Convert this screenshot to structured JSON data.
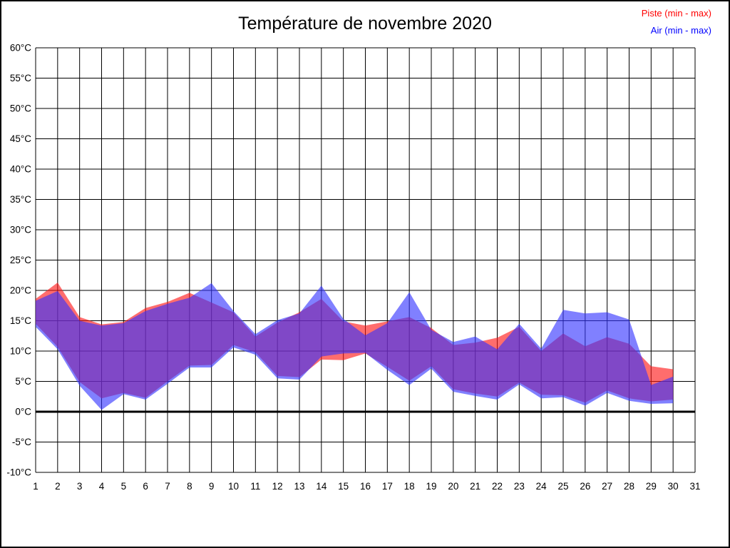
{
  "page_title": "Température de novembre 2020",
  "legend": {
    "piste_label": "Piste (min - max)",
    "air_label": "Air (min - max)",
    "piste_color": "#ff0000",
    "air_color": "#0000ff"
  },
  "chart_data": {
    "type": "area",
    "title": "Température de novembre 2020",
    "xlabel": "",
    "ylabel": "",
    "ylim": [
      -10,
      60
    ],
    "grid": true,
    "legend_position": "top-right",
    "y_tick_step": 5,
    "y_tick_labels": [
      "60°C",
      "55°C",
      "50°C",
      "45°C",
      "40°C",
      "35°C",
      "30°C",
      "25°C",
      "20°C",
      "15°C",
      "10°C",
      "5°C",
      "0°C",
      "-5°C",
      "-10°C"
    ],
    "y_tick_values": [
      60,
      55,
      50,
      45,
      40,
      35,
      30,
      25,
      20,
      15,
      10,
      5,
      0,
      -5,
      -10
    ],
    "x_tick_labels": [
      "1",
      "2",
      "3",
      "4",
      "5",
      "6",
      "7",
      "8",
      "9",
      "10",
      "11",
      "12",
      "13",
      "14",
      "15",
      "16",
      "17",
      "18",
      "19",
      "20",
      "21",
      "22",
      "23",
      "24",
      "25",
      "26",
      "27",
      "28",
      "29",
      "30",
      "31"
    ],
    "x_tick_values": [
      1,
      2,
      3,
      4,
      5,
      6,
      7,
      8,
      9,
      10,
      11,
      12,
      13,
      14,
      15,
      16,
      17,
      18,
      19,
      20,
      21,
      22,
      23,
      24,
      25,
      26,
      27,
      28,
      29,
      30,
      31
    ],
    "zero_line_value": 0,
    "days": [
      1,
      2,
      3,
      4,
      5,
      6,
      7,
      8,
      9,
      10,
      11,
      12,
      13,
      14,
      15,
      16,
      17,
      18,
      19,
      20,
      21,
      22,
      23,
      24,
      25,
      26,
      27,
      28,
      29,
      30
    ],
    "series": [
      {
        "name": "Piste (min - max)",
        "fill": "rgba(255,20,20,0.62)",
        "min": [
          14.5,
          10.7,
          4.9,
          2.2,
          3.1,
          2.3,
          5.0,
          7.6,
          7.7,
          11.0,
          9.8,
          5.9,
          5.7,
          8.6,
          8.5,
          9.6,
          7.4,
          5.1,
          7.5,
          3.7,
          3.0,
          2.5,
          4.8,
          2.8,
          2.7,
          1.5,
          3.5,
          2.2,
          1.7,
          2.0
        ],
        "max": [
          18.6,
          21.3,
          15.6,
          14.4,
          14.8,
          17.1,
          18.1,
          19.6,
          18.0,
          16.4,
          12.4,
          14.7,
          16.4,
          18.6,
          14.9,
          14.2,
          14.9,
          15.6,
          13.8,
          11.0,
          11.4,
          12.2,
          14.0,
          10.0,
          12.9,
          10.8,
          12.3,
          11.2,
          7.5,
          7.0
        ]
      },
      {
        "name": "Air (min - max)",
        "fill": "rgba(50,50,255,0.62)",
        "min": [
          14.0,
          10.3,
          4.3,
          0.3,
          2.9,
          2.0,
          4.6,
          7.3,
          7.3,
          10.6,
          9.4,
          5.5,
          5.3,
          9.1,
          9.6,
          9.7,
          6.9,
          4.4,
          7.1,
          3.3,
          2.6,
          2.0,
          4.5,
          2.2,
          2.4,
          1.0,
          3.1,
          1.8,
          1.3,
          1.4
        ],
        "max": [
          18.3,
          19.9,
          15.0,
          14.2,
          14.6,
          16.6,
          17.8,
          18.8,
          21.2,
          16.6,
          12.8,
          15.1,
          16.2,
          20.8,
          15.3,
          12.6,
          14.6,
          19.7,
          13.5,
          11.5,
          12.4,
          10.3,
          14.5,
          10.4,
          16.8,
          16.2,
          16.4,
          15.2,
          4.4,
          5.8
        ]
      }
    ]
  }
}
